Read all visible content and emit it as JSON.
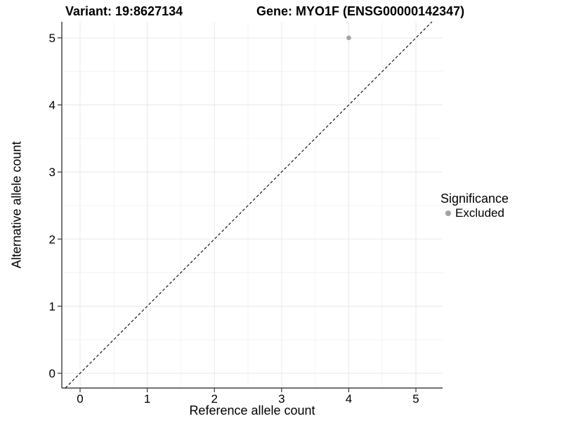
{
  "titles": {
    "variant": "Variant: 19:8627134",
    "gene": "Gene: MYO1F (ENSG00000142347)"
  },
  "chart_data": {
    "type": "scatter",
    "xlabel": "Reference allele count",
    "ylabel": "Alternative allele count",
    "xlim": [
      -0.272,
      5.397
    ],
    "ylim": [
      -0.22,
      5.24
    ],
    "xticks": [
      0,
      1,
      2,
      3,
      4,
      5
    ],
    "yticks": [
      0,
      1,
      2,
      3,
      4,
      5
    ],
    "minor_xticks": [
      0.5,
      1.5,
      2.5,
      3.5,
      4.5
    ],
    "minor_yticks": [
      0.5,
      1.5,
      2.5,
      3.5,
      4.5
    ],
    "grid": true,
    "points": [
      {
        "x": 4,
        "y": 5,
        "series": "Excluded"
      }
    ],
    "identity_line": {
      "slope": 1,
      "intercept": 0,
      "style": "dashed"
    },
    "legend": {
      "title": "Significance",
      "position": "right",
      "entries": [
        {
          "label": "Excluded",
          "color": "#a3a3a3"
        }
      ]
    },
    "colors": {
      "point": "#a3a3a3",
      "grid_major": "#e8e8e8",
      "grid_minor": "#f4f4f4",
      "axis_line": "#1f1f1f",
      "tick": "#333333",
      "text": "#000000",
      "background": "#ffffff"
    }
  }
}
